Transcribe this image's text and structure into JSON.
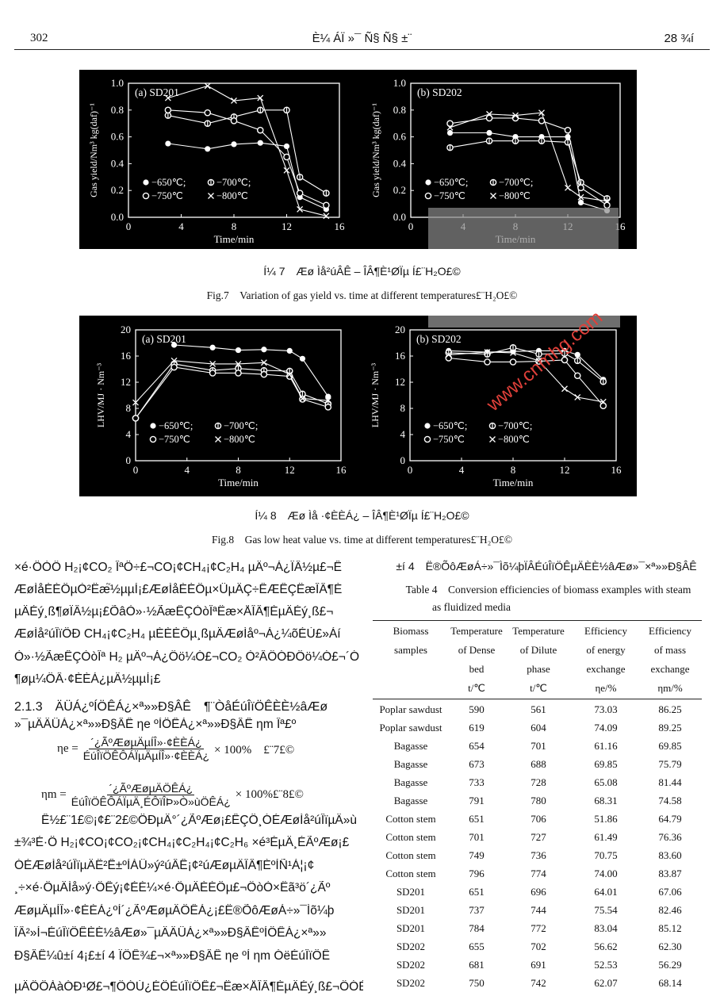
{
  "header": {
    "page_number": "302",
    "journal": "È¼ ÁÏ »¯ Ñ§ Ñ§ ±¨",
    "volume": "28 ¾í"
  },
  "fig7": {
    "caption_cn": "Í¼ 7　Æø Ìå²úÂÊ – ÎÂ¶È¹ØÏµ Í£¨H₂O£©",
    "caption_en": "Fig.7　Variation of gas yield vs. time at different temperatures£¨H₂O£©"
  },
  "fig8": {
    "caption_cn": "Í¼ 8　Æø Ìå ·¢ÈÈÁ¿ – ÎÂ¶È¹ØÏµ Í£¨H₂O£©",
    "caption_en": "Fig.8　Gas low heat value vs. time at different temperatures£¨H₂O£©"
  },
  "colors": {
    "figure_bg": "#000000",
    "marks": "#ffffff",
    "watermark": "#e0403a",
    "overlay": "#8a8a8a"
  },
  "watermark": "www.cnmhg.com",
  "body_left": {
    "lines": [
      "×é·ÖÒÔ H₂¡¢CO₂ ÎªÖ÷£¬CO¡¢CH₄¡¢C₂H₄ µÄº¬Á¿ÏÂ½µ£¬Ê",
      "ÆøÌåÈÈÖµÒ²Ëæ֮½µµÍ¡£ÆøÌåÈÈÖµ×ÜµÄÇ÷ÊÆÊÇËæÎÂ¶È",
      "µÄÉý¸ß¶øÏÂ½µ¡£ÕâÒ»·½ÃæÊÇÒòÎªËæ×ÅÎÂ¶ÈµÄÉý¸ß£¬",
      "ÆøÌå²úÎïÖÐ CH₄¡¢C₂H₄ µÈÈÈÖµ¸ßµÄÆøÌåº¬Á¿¼õÉÙ£»Áí",
      "Ò»·½ÃæÊÇÒòÎª H₂ µÄº¬Á¿Ôö¼Ó£¬CO₂ Ò²ÂÔÓÐÔö¼Ó£¬´Ó",
      "¶øµ¼ÖÂ·¢ÈÈÁ¿µÄ½µµÍ¡£"
    ],
    "section": "2.1.3　ÄÜÁ¿ºÍÖÊÁ¿×ª»»Ð§ÂÊ　¶¨ÒåÉúÎïÖÊÈÈ½âÆø",
    "section_cont": "»¯µÄÄÜÁ¿×ª»»Ð§ÂÊ ηe ºÍÖÊÁ¿×ª»»Ð§ÂÊ ηm Îª£º",
    "formula7": {
      "lhs": "ηe =",
      "num": "´¿ÃºÆøµÄµÍÎ»·¢ÈÈÁ¿",
      "den": "ÉúÎïÖÊÔ­ÁÏµÄµÍÎ»·¢ÈÈÁ¿",
      "rhs": "× 100%　£¨7£©"
    },
    "formula8": {
      "lhs": "ηm =",
      "num": "´¿ÃºÆøµÄÖÊÁ¿",
      "den": "ÉúÎïÖÊÔ­ÁÏµÄ¸ÉÔïÎÞ»Ò»ùÖÊÁ¿",
      "rhs": "× 100%£¨8£©"
    },
    "lines2": [
      "Ê½£¨1£©¡¢£¨2£©ÖÐµÄ°´¿ÃºÆø¡£ÊÇÖ¸ÓÉÆøÌå²úÎïµÄ»ù",
      "±¾³É·Ö H₂¡¢CO¡¢CO₂¡¢CH₄¡¢C₂H₄¡¢C₂H₆ ×é³ÉµÄ¸ÉÃºÆø¡£",
      "ÓÉÆøÌå²úÎïµÄË²Ê±ºÍÀÛ»ý²úÂÊ¡¢²úÆøµÄÎÂ¶ÈºÍÑ¹Á¦¡¢",
      "¸÷×é·ÖµÄÌå»ý·ÖÊý¡¢ÉÈ¼×é·ÖµÄÈÈÖµ£¬ÔòÒ×Ëã³ö´¿Ãº",
      "ÆøµÄµÍÎ»·¢ÈÈÁ¿ºÍ´¿ÃºÆøµÄÖÊÁ¿¡£Ë®ÕôÆøÁ÷»¯Ìõ¼þ",
      "ÏÂ²»Í¬ÉúÎïÖÊÈÈ½âÆø»¯µÄÄÜÁ¿×ª»»Ð§ÂÊºÍÖÊÁ¿×ª»»",
      "Ð§ÂÊ¼û±í 4¡£±í 4 ÏÔÊ¾£¬×ª»»Ð§ÂÊ ηe ºÍ ηm ÓëÉúÎïÖÊ",
      "µÄÖÖÀàÓÐ¹Ø£¬¶ÔÓÚ¿ÉÖÉúÎïÖÊ£¬Ëæ×ÅÎÂ¶ÈµÄÉý¸ß£¬ÔÓÉ¡Ö¼"
    ]
  },
  "table4": {
    "title_cn": "±í 4　Ë®ÕôÆøÁ÷»¯Ìõ¼þÏÂÉúÎïÖÊµÄÈÈ½âÆø»¯×ª»»Ð§ÂÊ",
    "title_en": "Table 4　Conversion efficiencies of biomass examples with steam",
    "title_en_cont": "as fluidized media",
    "columns": [
      [
        "Biomass",
        "samples",
        "",
        ""
      ],
      [
        "Temperature",
        "of Dense",
        "bed",
        "t/℃"
      ],
      [
        "Temperature",
        "of Dilute",
        "phase",
        "t/℃"
      ],
      [
        "Efficiency",
        "of energy",
        "exchange",
        "ηe/%"
      ],
      [
        "Efficiency",
        "of mass",
        "exchange",
        "ηm/%"
      ]
    ],
    "rows": [
      [
        "Poplar sawdust",
        "590",
        "561",
        "73.03",
        "86.25"
      ],
      [
        "Poplar sawdust",
        "619",
        "604",
        "74.09",
        "89.25"
      ],
      [
        "Bagasse",
        "654",
        "701",
        "61.16",
        "69.85"
      ],
      [
        "Bagasse",
        "673",
        "688",
        "69.85",
        "75.79"
      ],
      [
        "Bagasse",
        "733",
        "728",
        "65.08",
        "81.44"
      ],
      [
        "Bagasse",
        "791",
        "780",
        "68.31",
        "74.58"
      ],
      [
        "Cotton stem",
        "651",
        "706",
        "51.86",
        "64.79"
      ],
      [
        "Cotton stem",
        "701",
        "727",
        "61.49",
        "76.36"
      ],
      [
        "Cotton stem",
        "749",
        "736",
        "70.75",
        "83.60"
      ],
      [
        "Cotton stem",
        "796",
        "774",
        "74.00",
        "83.87"
      ],
      [
        "SD201",
        "651",
        "696",
        "64.01",
        "67.06"
      ],
      [
        "SD201",
        "737",
        "744",
        "75.54",
        "82.46"
      ],
      [
        "SD201",
        "784",
        "772",
        "83.04",
        "85.12"
      ],
      [
        "SD202",
        "655",
        "702",
        "56.62",
        "62.30"
      ],
      [
        "SD202",
        "681",
        "691",
        "52.53",
        "56.29"
      ],
      [
        "SD202",
        "750",
        "742",
        "62.07",
        "68.14"
      ]
    ]
  },
  "chart_data": [
    {
      "type": "line",
      "figure": "fig7",
      "panel_label": "(a) SD201",
      "xlabel": "Time/min",
      "ylabel": "Gas yield/Nm³ kg(daf)⁻¹",
      "xlim": [
        0,
        16
      ],
      "ylim": [
        0,
        1.0
      ],
      "xticks": [
        0,
        4,
        8,
        12,
        16
      ],
      "yticks": [
        "0.0",
        "0.2",
        "0.4",
        "0.6",
        "0.8",
        "1.0"
      ],
      "legend": "bottom-left",
      "x": [
        3,
        6,
        8,
        10,
        12,
        13,
        15
      ],
      "series": [
        {
          "name": "650℃",
          "marker": "filled-circle",
          "values": [
            0.55,
            0.51,
            0.545,
            0.555,
            0.53,
            0.15,
            0.06
          ]
        },
        {
          "name": "700℃",
          "marker": "circle-bar",
          "values": [
            0.76,
            0.7,
            0.75,
            0.8,
            0.8,
            0.3,
            0.18
          ]
        },
        {
          "name": "750℃",
          "marker": "open-circle",
          "values": [
            0.8,
            0.78,
            0.72,
            0.65,
            0.45,
            0.18,
            0.09
          ]
        },
        {
          "name": "800℃",
          "marker": "cross",
          "values": [
            0.89,
            0.98,
            0.87,
            0.89,
            0.35,
            0.06,
            0.01
          ]
        }
      ]
    },
    {
      "type": "line",
      "figure": "fig7",
      "panel_label": "(b) SD202",
      "xlabel": "Time/min",
      "ylabel": "Gas yield/Nm³ kg(daf)⁻¹",
      "xlim": [
        0,
        16
      ],
      "ylim": [
        0,
        1.0
      ],
      "xticks": [
        0,
        4,
        8,
        12,
        16
      ],
      "yticks": [
        "0.0",
        "0.2",
        "0.4",
        "0.6",
        "0.8",
        "1.0"
      ],
      "legend": "bottom-left",
      "x": [
        3,
        6,
        8,
        10,
        12,
        13,
        15
      ],
      "series": [
        {
          "name": "650℃",
          "marker": "filled-circle",
          "values": [
            0.63,
            0.63,
            0.6,
            0.6,
            0.6,
            0.11,
            0.05
          ]
        },
        {
          "name": "700℃",
          "marker": "circle-bar",
          "values": [
            0.52,
            0.57,
            0.57,
            0.57,
            0.56,
            0.26,
            0.14
          ]
        },
        {
          "name": "750℃",
          "marker": "open-circle",
          "values": [
            0.7,
            0.74,
            0.74,
            0.72,
            0.65,
            0.22,
            0.09
          ]
        },
        {
          "name": "800℃",
          "marker": "cross",
          "values": [
            0.67,
            0.77,
            0.76,
            0.78,
            0.22,
            0.15,
            0.12
          ]
        }
      ]
    },
    {
      "type": "line",
      "figure": "fig8",
      "panel_label": "(a) SD201",
      "xlabel": "Time/min",
      "ylabel": "LHV/MJ · Nm⁻³",
      "xlim": [
        0,
        16
      ],
      "ylim": [
        0,
        20
      ],
      "xticks": [
        0,
        4,
        8,
        12,
        16
      ],
      "yticks": [
        "0",
        "4",
        "8",
        "12",
        "16",
        "20"
      ],
      "legend": "bottom-left",
      "x": [
        0,
        3,
        6,
        8,
        10,
        12,
        13,
        15
      ],
      "series": [
        {
          "name": "650℃",
          "marker": "filled-circle",
          "values": [
            null,
            17.7,
            17.3,
            16.9,
            17.0,
            16.8,
            15.6,
            9.8
          ]
        },
        {
          "name": "700℃",
          "marker": "circle-bar",
          "values": [
            6.5,
            14.8,
            13.8,
            14.1,
            13.8,
            13.7,
            10.2,
            8.7
          ]
        },
        {
          "name": "750℃",
          "marker": "open-circle",
          "values": [
            6.5,
            14.3,
            13.4,
            13.4,
            13.2,
            12.9,
            9.4,
            8.2
          ]
        },
        {
          "name": "800℃",
          "marker": "cross",
          "values": [
            8.9,
            15.3,
            14.8,
            14.8,
            15.0,
            13.2,
            9.5,
            9.2
          ]
        }
      ]
    },
    {
      "type": "line",
      "figure": "fig8",
      "panel_label": "(b) SD202",
      "xlabel": "Time/min",
      "ylabel": "LHV/MJ · Nm⁻³",
      "xlim": [
        0,
        16
      ],
      "ylim": [
        0,
        20
      ],
      "xticks": [
        0,
        4,
        8,
        12,
        16
      ],
      "yticks": [
        "0",
        "4",
        "8",
        "12",
        "16",
        "20"
      ],
      "legend": "bottom-left",
      "x": [
        3,
        6,
        8,
        10,
        12,
        13,
        15
      ],
      "series": [
        {
          "name": "650℃",
          "marker": "filled-circle",
          "values": [
            16.8,
            16.6,
            16.7,
            16.8,
            16.8,
            16.2,
            12.4
          ]
        },
        {
          "name": "700℃",
          "marker": "circle-bar",
          "values": [
            16.5,
            16.3,
            17.3,
            16.3,
            16.4,
            15.3,
            12.1
          ]
        },
        {
          "name": "750℃",
          "marker": "open-circle",
          "values": [
            15.7,
            15.1,
            15.1,
            15.2,
            15.4,
            13.0,
            8.4
          ]
        },
        {
          "name": "800℃",
          "marker": "cross",
          "values": [
            16.2,
            16.6,
            16.5,
            15.3,
            11.0,
            9.7,
            9.0
          ]
        }
      ]
    }
  ]
}
